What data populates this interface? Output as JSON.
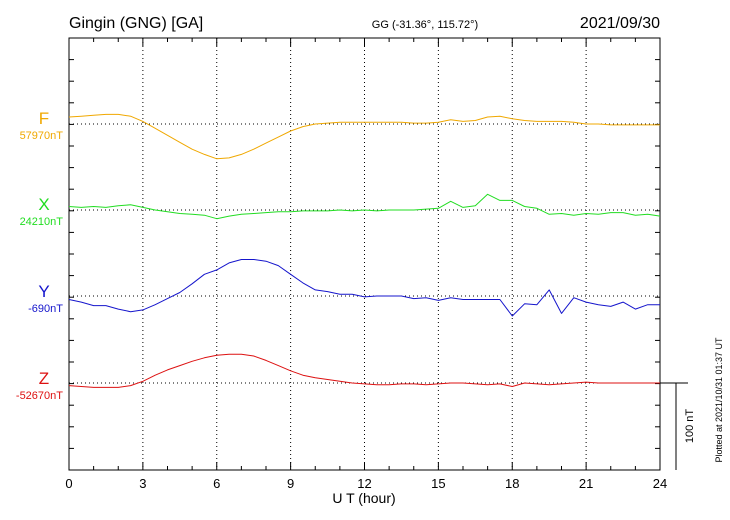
{
  "header": {
    "station": "Gingin (GNG)  [GA]",
    "coords": "GG (-31.36°, 115.72°)",
    "date": "2021/09/30"
  },
  "plotted_note": "Plotted at 2021/10/31 01:37 UT",
  "scale_bar": {
    "label": "100 nT",
    "value_nT": 100
  },
  "colors": {
    "F": "#f0a800",
    "X": "#22dd22",
    "Y": "#1515cc",
    "Z": "#dd1111",
    "frame": "#000000",
    "grid": "#000000"
  },
  "chart_data": {
    "type": "line",
    "title": "Gingin (GNG)  [GA]",
    "xlabel": "U T (hour)",
    "ylabel": "",
    "xlim": [
      0,
      24
    ],
    "xticks": [
      "0",
      "3",
      "6",
      "9",
      "12",
      "15",
      "18",
      "21",
      "24"
    ],
    "grid": true,
    "series": [
      {
        "name": "F",
        "baseline": "57970nT",
        "baseline_nT": 57970,
        "x": [
          0,
          0.5,
          1,
          1.5,
          2,
          2.5,
          3,
          3.5,
          4,
          4.5,
          5,
          5.5,
          6,
          6.5,
          7,
          7.5,
          8,
          8.5,
          9,
          9.5,
          10,
          10.5,
          11,
          11.5,
          12,
          12.5,
          13,
          13.5,
          14,
          14.5,
          15,
          15.5,
          16,
          16.5,
          17,
          17.5,
          18,
          18.5,
          19,
          19.5,
          20,
          20.5,
          21,
          21.5,
          22,
          22.5,
          23,
          23.5,
          24
        ],
        "y": [
          57978,
          57979,
          57980,
          57981,
          57981,
          57979,
          57973,
          57965,
          57957,
          57949,
          57941,
          57935,
          57930,
          57931,
          57935,
          57941,
          57948,
          57955,
          57962,
          57967,
          57970,
          57971,
          57972,
          57972,
          57972,
          57972,
          57972,
          57972,
          57971,
          57971,
          57972,
          57975,
          57973,
          57974,
          57978,
          57979,
          57976,
          57974,
          57973,
          57973,
          57973,
          57972,
          57970,
          57970,
          57969,
          57969,
          57969,
          57969,
          57969
        ]
      },
      {
        "name": "X",
        "baseline": "24210nT",
        "baseline_nT": 24210,
        "x": [
          0,
          0.5,
          1,
          1.5,
          2,
          2.5,
          3,
          3.5,
          4,
          4.5,
          5,
          5.5,
          6,
          6.5,
          7,
          7.5,
          8,
          8.5,
          9,
          9.5,
          10,
          10.5,
          11,
          11.5,
          12,
          12.5,
          13,
          13.5,
          14,
          14.5,
          15,
          15.5,
          16,
          16.5,
          17,
          17.5,
          18,
          18.5,
          19,
          19.5,
          20,
          20.5,
          21,
          21.5,
          22,
          22.5,
          23,
          23.5,
          24
        ],
        "y": [
          24214,
          24213,
          24214,
          24213,
          24215,
          24216,
          24213,
          24210,
          24208,
          24206,
          24205,
          24204,
          24200,
          24203,
          24205,
          24206,
          24207,
          24208,
          24208,
          24209,
          24209,
          24209,
          24210,
          24209,
          24210,
          24209,
          24210,
          24210,
          24210,
          24211,
          24212,
          24220,
          24213,
          24215,
          24228,
          24221,
          24221,
          24214,
          24212,
          24205,
          24206,
          24204,
          24206,
          24205,
          24207,
          24207,
          24204,
          24205,
          24203
        ]
      },
      {
        "name": "Y",
        "baseline": "-690nT",
        "baseline_nT": -690,
        "x": [
          0,
          0.5,
          1,
          1.5,
          2,
          2.5,
          3,
          3.5,
          4,
          4.5,
          5,
          5.5,
          6,
          6.5,
          7,
          7.5,
          8,
          8.5,
          9,
          9.5,
          10,
          10.5,
          11,
          11.5,
          12,
          12.5,
          13,
          13.5,
          14,
          14.5,
          15,
          15.5,
          16,
          16.5,
          17,
          17.5,
          18,
          18.5,
          19,
          19.5,
          20,
          20.5,
          21,
          21.5,
          22,
          22.5,
          23,
          23.5,
          24
        ],
        "y": [
          -694,
          -697,
          -701,
          -701,
          -705,
          -708,
          -706,
          -700,
          -693,
          -686,
          -676,
          -665,
          -660,
          -652,
          -648,
          -648,
          -650,
          -655,
          -665,
          -675,
          -683,
          -685,
          -688,
          -688,
          -691,
          -690,
          -690,
          -690,
          -693,
          -692,
          -695,
          -692,
          -694,
          -694,
          -694,
          -694,
          -713,
          -699,
          -700,
          -683,
          -710,
          -692,
          -697,
          -700,
          -702,
          -697,
          -705,
          -700,
          -700
        ]
      },
      {
        "name": "Z",
        "baseline": "-52670nT",
        "baseline_nT": -52670,
        "x": [
          0,
          0.5,
          1,
          1.5,
          2,
          2.5,
          3,
          3.5,
          4,
          4.5,
          5,
          5.5,
          6,
          6.5,
          7,
          7.5,
          8,
          8.5,
          9,
          9.5,
          10,
          10.5,
          11,
          11.5,
          12,
          12.5,
          13,
          13.5,
          14,
          14.5,
          15,
          15.5,
          16,
          16.5,
          17,
          17.5,
          18,
          18.5,
          19,
          19.5,
          20,
          20.5,
          21,
          21.5,
          22,
          22.5,
          23,
          23.5,
          24
        ],
        "y": [
          -52673,
          -52674,
          -52675,
          -52675,
          -52675,
          -52673,
          -52668,
          -52661,
          -52655,
          -52650,
          -52645,
          -52641,
          -52638,
          -52637,
          -52637,
          -52639,
          -52644,
          -52650,
          -52656,
          -52661,
          -52664,
          -52666,
          -52668,
          -52670,
          -52671,
          -52672,
          -52672,
          -52671,
          -52671,
          -52672,
          -52671,
          -52670,
          -52670,
          -52671,
          -52672,
          -52671,
          -52674,
          -52670,
          -52671,
          -52672,
          -52671,
          -52670,
          -52669,
          -52670,
          -52670,
          -52670,
          -52670,
          -52670,
          -52670
        ]
      }
    ]
  }
}
